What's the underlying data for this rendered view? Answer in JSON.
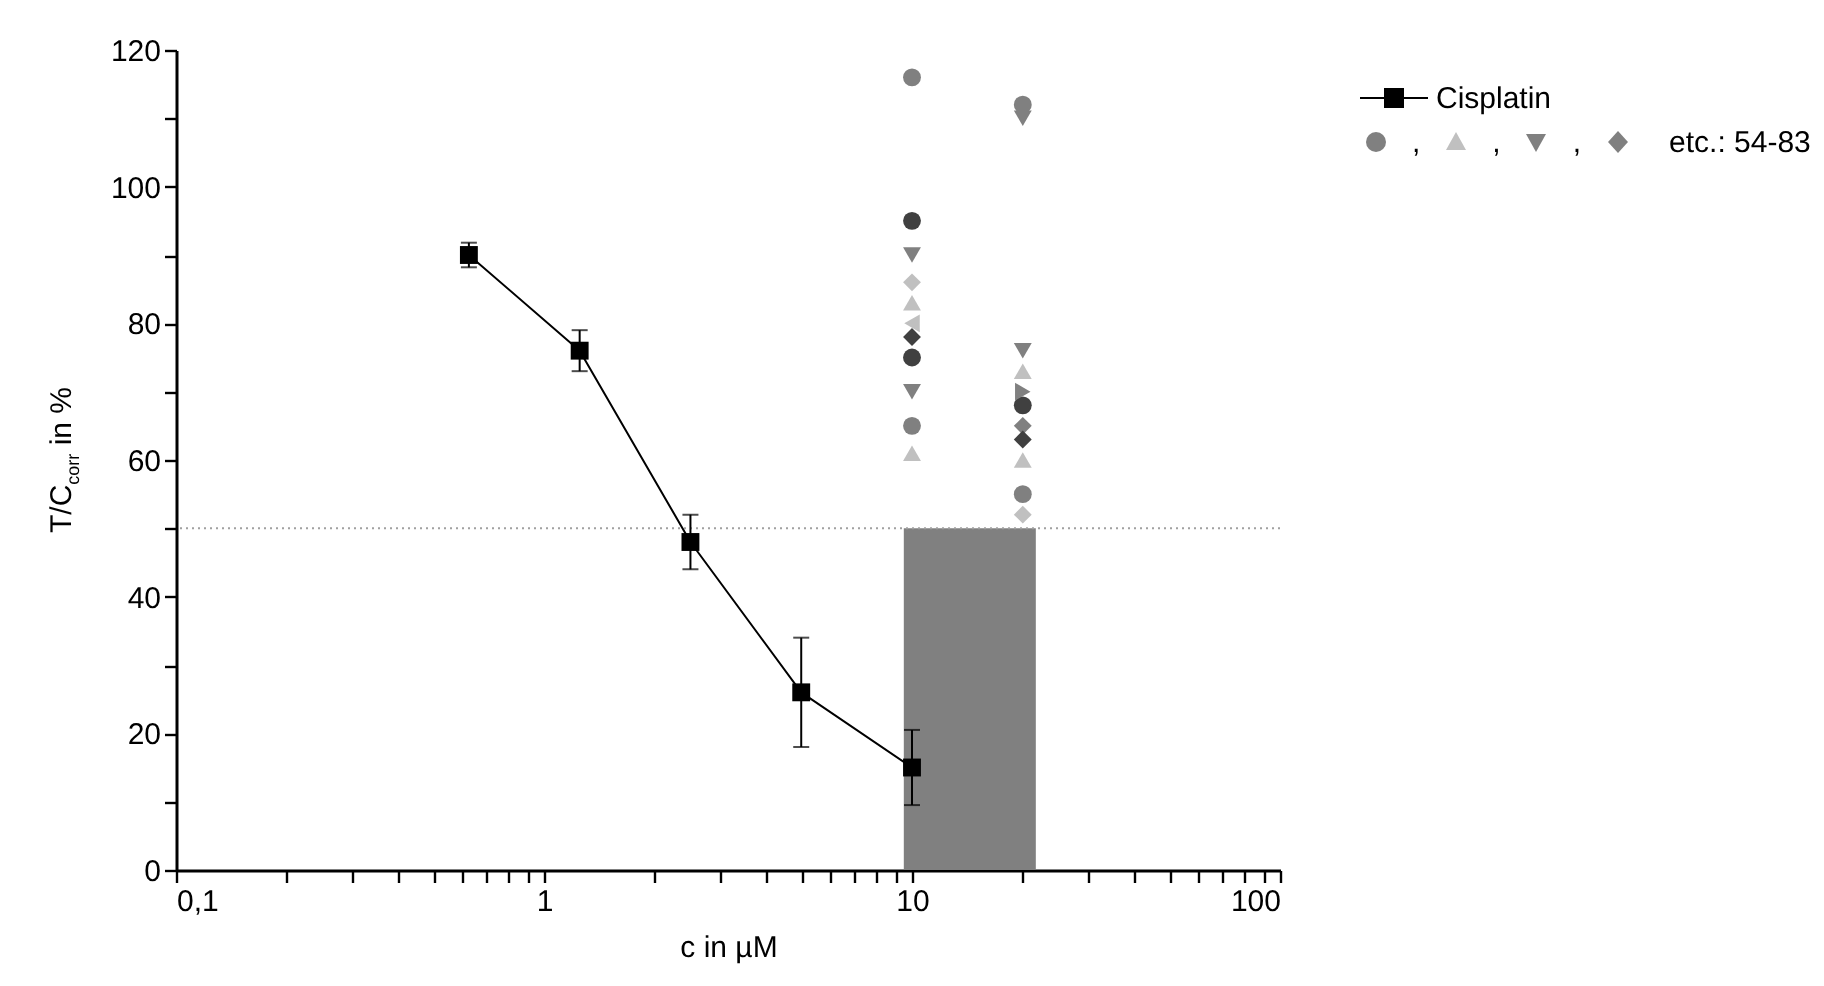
{
  "chart_data": {
    "type": "scatter",
    "xlabel": "c in µM",
    "ylabel": "T/C$_{corr}$ in %",
    "log": "x",
    "grid": false,
    "legend": "top right",
    "xlim": [
      0.1,
      100
    ],
    "xticks": [
      {
        "value": 0.1,
        "label": "0,1"
      },
      {
        "value": 0.2,
        "label": null
      },
      {
        "value": 0.3,
        "label": null
      },
      {
        "value": 0.4,
        "label": null
      },
      {
        "value": 0.5,
        "label": null
      },
      {
        "value": 0.6,
        "label": null
      },
      {
        "value": 0.7,
        "label": null
      },
      {
        "value": 0.8,
        "label": null
      },
      {
        "value": 0.9,
        "label": null
      },
      1,
      {
        "value": 2,
        "label": null
      },
      {
        "value": 3,
        "label": null
      },
      {
        "value": 4,
        "label": null
      },
      {
        "value": 5,
        "label": null
      },
      {
        "value": 6,
        "label": null
      },
      {
        "value": 7,
        "label": null
      },
      {
        "value": 8,
        "label": null
      },
      {
        "value": 9,
        "label": null
      },
      10,
      {
        "value": 20,
        "label": null
      },
      {
        "value": 30,
        "label": null
      },
      {
        "value": 40,
        "label": null
      },
      {
        "value": 50,
        "label": null
      },
      {
        "value": 60,
        "label": null
      },
      {
        "value": 70,
        "label": null
      },
      {
        "value": 80,
        "label": null
      },
      {
        "value": 90,
        "label": null
      },
      100
    ],
    "ylim": [
      0,
      120
    ],
    "yticks": [
      0,
      {
        "value": 10,
        "label": null
      },
      20,
      {
        "value": 30,
        "label": null
      },
      40,
      {
        "value": 50,
        "label": null
      },
      60,
      {
        "value": 70,
        "label": null
      },
      80,
      {
        "value": 90,
        "label": null
      },
      100,
      {
        "value": 110,
        "label": null
      },
      120
    ],
    "ref_lines": [
      {
        "axis": "y",
        "value": 50,
        "color": "#a0a0a0",
        "line_style": "dotted"
      }
    ],
    "series": [
      {
        "type": "area",
        "color": "#808080",
        "x": [
          9.5,
          21.7
        ],
        "values": [
          50,
          50
        ]
      },
      {
        "type": "line",
        "name": "Cisplatin",
        "color": "#000000",
        "marker": "square",
        "line_style": "solid",
        "x": [
          0.625,
          1.25,
          2.5,
          5,
          10
        ],
        "values": [
          90,
          76,
          48,
          26,
          15
        ],
        "errors": [
          1.8,
          3,
          4,
          8,
          5.5
        ]
      },
      {
        "type": "scatter",
        "color": "#808080",
        "marker": "circle",
        "x": [
          10,
          10,
          20,
          20
        ],
        "values": [
          116,
          65,
          112,
          55
        ]
      },
      {
        "type": "scatter",
        "color": "#c0c0c0",
        "marker": "triangle",
        "x": [
          10,
          10,
          20,
          20
        ],
        "values": [
          83,
          61,
          73,
          60
        ]
      },
      {
        "type": "scatter",
        "color": "#808080",
        "marker": "triangle-down",
        "x": [
          10,
          10,
          20,
          20
        ],
        "values": [
          90,
          70,
          110,
          76
        ]
      },
      {
        "type": "scatter",
        "color": "#808080",
        "marker": "diamond",
        "x": [
          20
        ],
        "values": [
          65
        ]
      },
      {
        "type": "scatter",
        "color": "#c0c0c0",
        "marker": "diamond",
        "x": [
          10,
          20
        ],
        "values": [
          86,
          52
        ]
      },
      {
        "type": "scatter",
        "color": "#404040",
        "marker": "diamond",
        "x": [
          10,
          20
        ],
        "values": [
          78,
          63
        ]
      },
      {
        "type": "scatter",
        "color": "#404040",
        "marker": "circle",
        "x": [
          10,
          10,
          20
        ],
        "values": [
          95,
          75,
          68
        ]
      },
      {
        "type": "scatter",
        "color": "#c0c0c0",
        "marker": "triangle-left",
        "x": [
          10
        ],
        "values": [
          80
        ]
      },
      {
        "type": "scatter",
        "color": "#808080",
        "marker": "triangle-right",
        "x": [
          20
        ],
        "values": [
          70
        ]
      }
    ],
    "annotations": [
      ",",
      ",",
      ",",
      "etc.: 54-83"
    ]
  }
}
